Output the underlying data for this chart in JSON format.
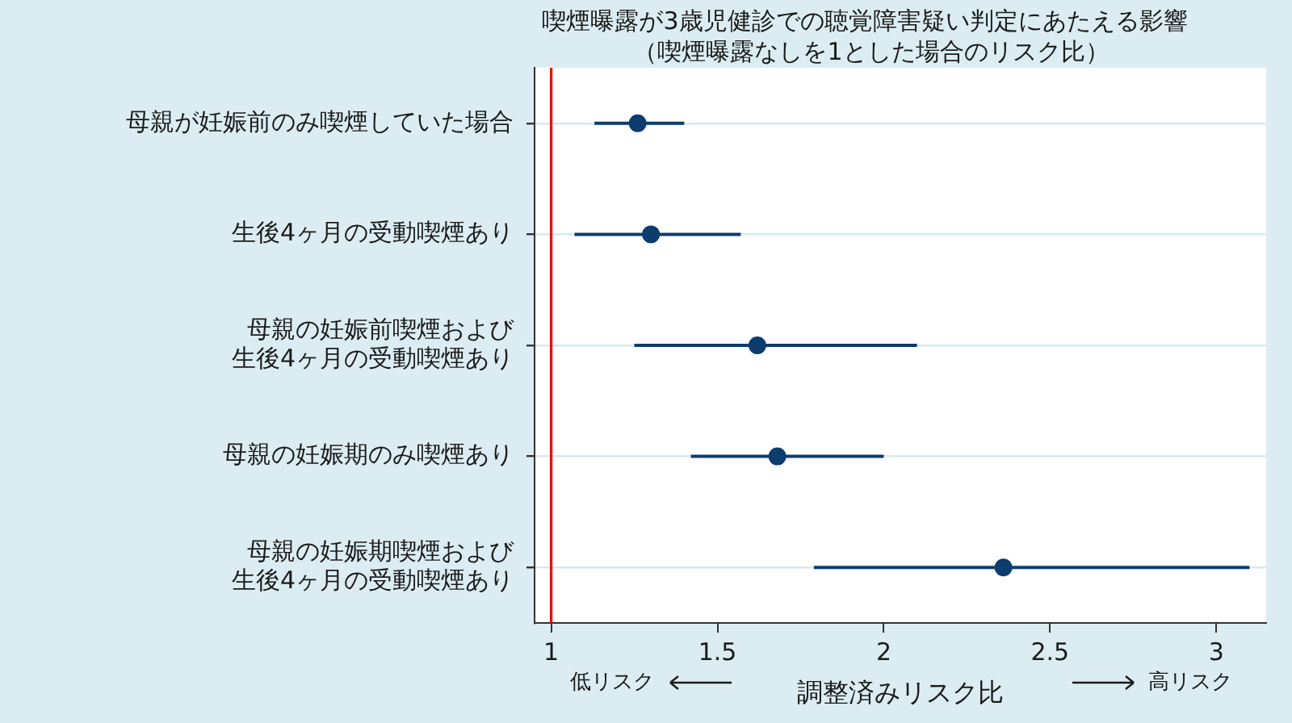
{
  "chart_data": {
    "type": "scatter",
    "title": "喫煙曝露が3歳児健診での聴覚障害疑い判定にあたえる影響",
    "subtitle": "（喫煙曝露なしを1とした場合のリスク比）",
    "xlabel": "調整済みリスク比",
    "annotations": [
      "低リスク",
      "高リスク"
    ],
    "categories": [
      "母親が妊娠前のみ喫煙していた場合",
      "生後4ヶ月の受動喫煙あり",
      "母親の妊娠前喫煙および生後4ヶ月の受動喫煙あり",
      "母親の妊娠期のみ喫煙あり",
      "母親の妊娠期喫煙および生後4ヶ月の受動喫煙あり"
    ],
    "orientation": "horizontal",
    "values": [
      1.26,
      1.3,
      1.62,
      1.68,
      2.36
    ],
    "errors": [
      [
        1.13,
        1.4
      ],
      [
        1.07,
        1.57
      ],
      [
        1.25,
        2.1
      ],
      [
        1.42,
        2.0
      ],
      [
        1.79,
        3.1
      ]
    ],
    "color": "#0d3c6e",
    "marker": "circle",
    "xlim": [
      0.95,
      3.15
    ],
    "xticks": [
      1,
      1.5,
      2,
      2.5,
      3
    ],
    "ref_lines": [
      {
        "axis": "x",
        "value": 1,
        "color": "#ff0000"
      }
    ],
    "grid": "y"
  }
}
